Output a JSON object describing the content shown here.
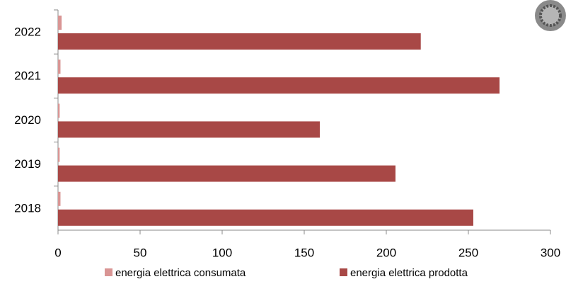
{
  "chart_data": {
    "type": "hbar",
    "categories": [
      "2018",
      "2019",
      "2020",
      "2021",
      "2022"
    ],
    "series": [
      {
        "name": "energia elettrica consumata",
        "color": "#d99594",
        "values": [
          1.5,
          1,
          1,
          1.5,
          2.2
        ]
      },
      {
        "name": "energia elettrica prodotta",
        "color": "#a84846",
        "values": [
          253,
          205.6,
          159.5,
          269,
          221
        ]
      }
    ],
    "xlim": [
      0,
      300
    ],
    "xticks": [
      0,
      50,
      100,
      150,
      200,
      250,
      300
    ]
  }
}
